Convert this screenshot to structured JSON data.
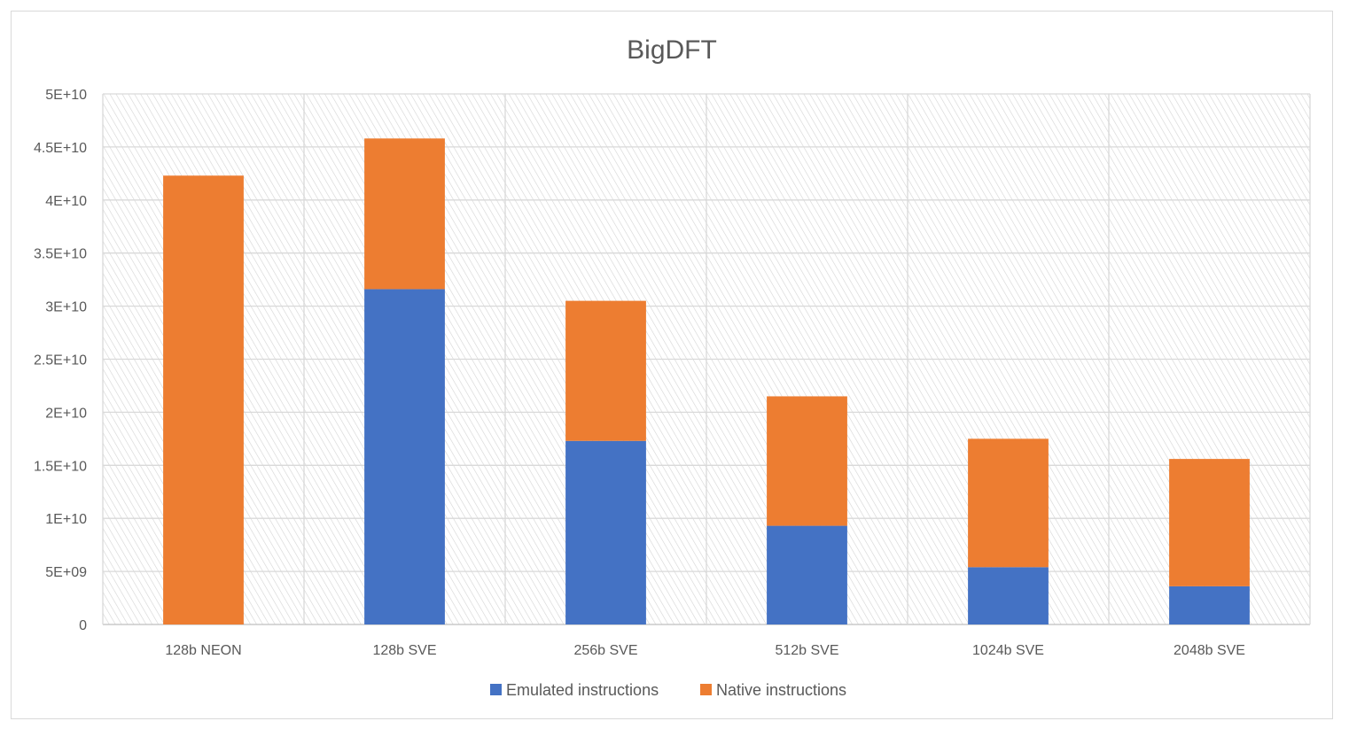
{
  "chart_data": {
    "type": "bar",
    "stacked": true,
    "title": "BigDFT",
    "xlabel": "",
    "ylabel": "",
    "categories": [
      "128b NEON",
      "128b SVE",
      "256b SVE",
      "512b SVE",
      "1024b SVE",
      "2048b SVE"
    ],
    "series": [
      {
        "name": "Emulated instructions",
        "color": "#4472c4",
        "values": [
          0,
          31600000000,
          17300000000,
          9300000000,
          5400000000,
          3600000000
        ]
      },
      {
        "name": "Native instructions",
        "color": "#ed7d31",
        "values": [
          42300000000,
          14200000000,
          13200000000,
          12200000000,
          12100000000,
          12000000000
        ]
      }
    ],
    "ylim": [
      0,
      50000000000
    ],
    "yticks": [
      0,
      5000000000,
      10000000000,
      15000000000,
      20000000000,
      25000000000,
      30000000000,
      35000000000,
      40000000000,
      45000000000,
      50000000000
    ],
    "ytick_labels": [
      "0",
      "5E+09",
      "1E+10",
      "1.5E+10",
      "2E+10",
      "2.5E+10",
      "3E+10",
      "3.5E+10",
      "4E+10",
      "4.5E+10",
      "5E+10"
    ],
    "grid": true,
    "legend_position": "bottom"
  }
}
